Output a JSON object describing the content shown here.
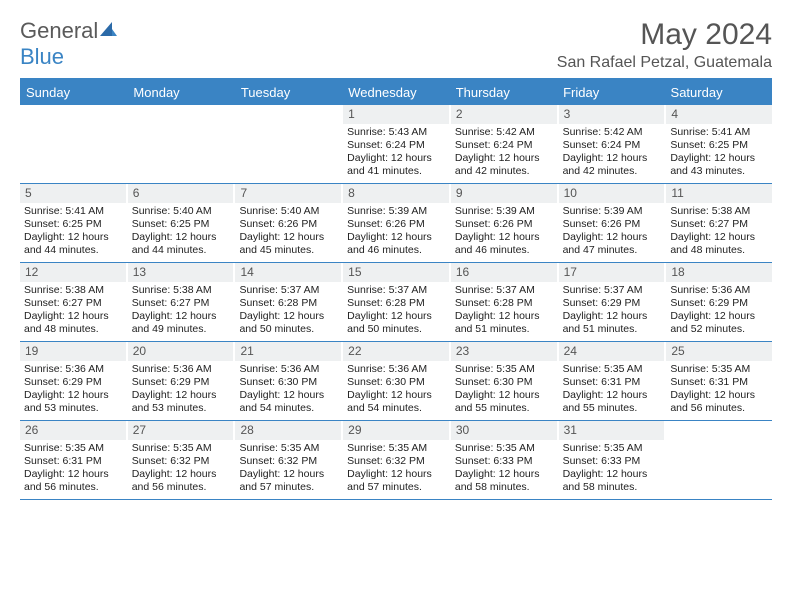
{
  "logo": {
    "word1": "General",
    "word2": "Blue"
  },
  "title": "May 2024",
  "location": "San Rafael Petzal, Guatemala",
  "colors": {
    "header_bg": "#3a84c4",
    "header_text": "#ffffff",
    "daynum_bg": "#eef0f1",
    "border": "#3a84c4",
    "body_text": "#222222",
    "title_text": "#555555"
  },
  "fonts": {
    "title_size": 30,
    "location_size": 16,
    "header_size": 13,
    "body_size": 10.5
  },
  "day_names": [
    "Sunday",
    "Monday",
    "Tuesday",
    "Wednesday",
    "Thursday",
    "Friday",
    "Saturday"
  ],
  "weeks": [
    [
      {
        "empty": true
      },
      {
        "empty": true
      },
      {
        "empty": true
      },
      {
        "day": "1",
        "sunrise": "Sunrise: 5:43 AM",
        "sunset": "Sunset: 6:24 PM",
        "daylight1": "Daylight: 12 hours",
        "daylight2": "and 41 minutes."
      },
      {
        "day": "2",
        "sunrise": "Sunrise: 5:42 AM",
        "sunset": "Sunset: 6:24 PM",
        "daylight1": "Daylight: 12 hours",
        "daylight2": "and 42 minutes."
      },
      {
        "day": "3",
        "sunrise": "Sunrise: 5:42 AM",
        "sunset": "Sunset: 6:24 PM",
        "daylight1": "Daylight: 12 hours",
        "daylight2": "and 42 minutes."
      },
      {
        "day": "4",
        "sunrise": "Sunrise: 5:41 AM",
        "sunset": "Sunset: 6:25 PM",
        "daylight1": "Daylight: 12 hours",
        "daylight2": "and 43 minutes."
      }
    ],
    [
      {
        "day": "5",
        "sunrise": "Sunrise: 5:41 AM",
        "sunset": "Sunset: 6:25 PM",
        "daylight1": "Daylight: 12 hours",
        "daylight2": "and 44 minutes."
      },
      {
        "day": "6",
        "sunrise": "Sunrise: 5:40 AM",
        "sunset": "Sunset: 6:25 PM",
        "daylight1": "Daylight: 12 hours",
        "daylight2": "and 44 minutes."
      },
      {
        "day": "7",
        "sunrise": "Sunrise: 5:40 AM",
        "sunset": "Sunset: 6:26 PM",
        "daylight1": "Daylight: 12 hours",
        "daylight2": "and 45 minutes."
      },
      {
        "day": "8",
        "sunrise": "Sunrise: 5:39 AM",
        "sunset": "Sunset: 6:26 PM",
        "daylight1": "Daylight: 12 hours",
        "daylight2": "and 46 minutes."
      },
      {
        "day": "9",
        "sunrise": "Sunrise: 5:39 AM",
        "sunset": "Sunset: 6:26 PM",
        "daylight1": "Daylight: 12 hours",
        "daylight2": "and 46 minutes."
      },
      {
        "day": "10",
        "sunrise": "Sunrise: 5:39 AM",
        "sunset": "Sunset: 6:26 PM",
        "daylight1": "Daylight: 12 hours",
        "daylight2": "and 47 minutes."
      },
      {
        "day": "11",
        "sunrise": "Sunrise: 5:38 AM",
        "sunset": "Sunset: 6:27 PM",
        "daylight1": "Daylight: 12 hours",
        "daylight2": "and 48 minutes."
      }
    ],
    [
      {
        "day": "12",
        "sunrise": "Sunrise: 5:38 AM",
        "sunset": "Sunset: 6:27 PM",
        "daylight1": "Daylight: 12 hours",
        "daylight2": "and 48 minutes."
      },
      {
        "day": "13",
        "sunrise": "Sunrise: 5:38 AM",
        "sunset": "Sunset: 6:27 PM",
        "daylight1": "Daylight: 12 hours",
        "daylight2": "and 49 minutes."
      },
      {
        "day": "14",
        "sunrise": "Sunrise: 5:37 AM",
        "sunset": "Sunset: 6:28 PM",
        "daylight1": "Daylight: 12 hours",
        "daylight2": "and 50 minutes."
      },
      {
        "day": "15",
        "sunrise": "Sunrise: 5:37 AM",
        "sunset": "Sunset: 6:28 PM",
        "daylight1": "Daylight: 12 hours",
        "daylight2": "and 50 minutes."
      },
      {
        "day": "16",
        "sunrise": "Sunrise: 5:37 AM",
        "sunset": "Sunset: 6:28 PM",
        "daylight1": "Daylight: 12 hours",
        "daylight2": "and 51 minutes."
      },
      {
        "day": "17",
        "sunrise": "Sunrise: 5:37 AM",
        "sunset": "Sunset: 6:29 PM",
        "daylight1": "Daylight: 12 hours",
        "daylight2": "and 51 minutes."
      },
      {
        "day": "18",
        "sunrise": "Sunrise: 5:36 AM",
        "sunset": "Sunset: 6:29 PM",
        "daylight1": "Daylight: 12 hours",
        "daylight2": "and 52 minutes."
      }
    ],
    [
      {
        "day": "19",
        "sunrise": "Sunrise: 5:36 AM",
        "sunset": "Sunset: 6:29 PM",
        "daylight1": "Daylight: 12 hours",
        "daylight2": "and 53 minutes."
      },
      {
        "day": "20",
        "sunrise": "Sunrise: 5:36 AM",
        "sunset": "Sunset: 6:29 PM",
        "daylight1": "Daylight: 12 hours",
        "daylight2": "and 53 minutes."
      },
      {
        "day": "21",
        "sunrise": "Sunrise: 5:36 AM",
        "sunset": "Sunset: 6:30 PM",
        "daylight1": "Daylight: 12 hours",
        "daylight2": "and 54 minutes."
      },
      {
        "day": "22",
        "sunrise": "Sunrise: 5:36 AM",
        "sunset": "Sunset: 6:30 PM",
        "daylight1": "Daylight: 12 hours",
        "daylight2": "and 54 minutes."
      },
      {
        "day": "23",
        "sunrise": "Sunrise: 5:35 AM",
        "sunset": "Sunset: 6:30 PM",
        "daylight1": "Daylight: 12 hours",
        "daylight2": "and 55 minutes."
      },
      {
        "day": "24",
        "sunrise": "Sunrise: 5:35 AM",
        "sunset": "Sunset: 6:31 PM",
        "daylight1": "Daylight: 12 hours",
        "daylight2": "and 55 minutes."
      },
      {
        "day": "25",
        "sunrise": "Sunrise: 5:35 AM",
        "sunset": "Sunset: 6:31 PM",
        "daylight1": "Daylight: 12 hours",
        "daylight2": "and 56 minutes."
      }
    ],
    [
      {
        "day": "26",
        "sunrise": "Sunrise: 5:35 AM",
        "sunset": "Sunset: 6:31 PM",
        "daylight1": "Daylight: 12 hours",
        "daylight2": "and 56 minutes."
      },
      {
        "day": "27",
        "sunrise": "Sunrise: 5:35 AM",
        "sunset": "Sunset: 6:32 PM",
        "daylight1": "Daylight: 12 hours",
        "daylight2": "and 56 minutes."
      },
      {
        "day": "28",
        "sunrise": "Sunrise: 5:35 AM",
        "sunset": "Sunset: 6:32 PM",
        "daylight1": "Daylight: 12 hours",
        "daylight2": "and 57 minutes."
      },
      {
        "day": "29",
        "sunrise": "Sunrise: 5:35 AM",
        "sunset": "Sunset: 6:32 PM",
        "daylight1": "Daylight: 12 hours",
        "daylight2": "and 57 minutes."
      },
      {
        "day": "30",
        "sunrise": "Sunrise: 5:35 AM",
        "sunset": "Sunset: 6:33 PM",
        "daylight1": "Daylight: 12 hours",
        "daylight2": "and 58 minutes."
      },
      {
        "day": "31",
        "sunrise": "Sunrise: 5:35 AM",
        "sunset": "Sunset: 6:33 PM",
        "daylight1": "Daylight: 12 hours",
        "daylight2": "and 58 minutes."
      },
      {
        "empty": true
      }
    ]
  ]
}
